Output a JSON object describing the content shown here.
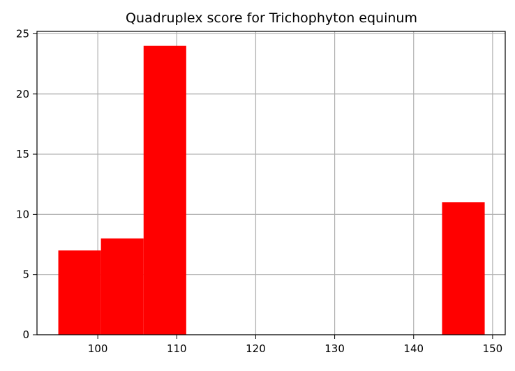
{
  "chart_data": {
    "type": "bar",
    "subtype": "histogram",
    "title": "Quadruplex score for Trichophyton equinum",
    "xlabel": "",
    "ylabel": "",
    "xlim": [
      92.3,
      151.6
    ],
    "ylim": [
      0,
      25.2
    ],
    "xticks": [
      100,
      110,
      120,
      130,
      140,
      150
    ],
    "yticks": [
      0,
      5,
      10,
      15,
      20,
      25
    ],
    "grid": true,
    "bar_color": "#ff0000",
    "bins": [
      {
        "x0": 95.0,
        "x1": 100.4,
        "count": 7
      },
      {
        "x0": 100.4,
        "x1": 105.8,
        "count": 8
      },
      {
        "x0": 105.8,
        "x1": 111.2,
        "count": 24
      },
      {
        "x0": 111.2,
        "x1": 116.6,
        "count": 0
      },
      {
        "x0": 116.6,
        "x1": 122.0,
        "count": 0
      },
      {
        "x0": 122.0,
        "x1": 127.4,
        "count": 0
      },
      {
        "x0": 127.4,
        "x1": 132.8,
        "count": 0
      },
      {
        "x0": 132.8,
        "x1": 138.2,
        "count": 0
      },
      {
        "x0": 138.2,
        "x1": 143.6,
        "count": 0
      },
      {
        "x0": 143.6,
        "x1": 149.0,
        "count": 11
      }
    ]
  }
}
